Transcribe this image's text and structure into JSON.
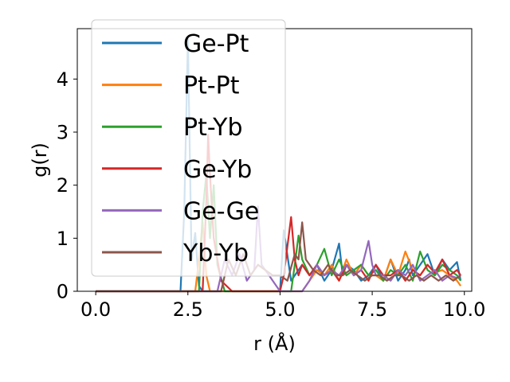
{
  "chart_data": {
    "type": "line",
    "xlabel": "r (Å)",
    "ylabel": "g(r)",
    "xlim": [
      -0.5,
      10.2
    ],
    "ylim": [
      0,
      4.95
    ],
    "x_ticks": [
      0.0,
      2.5,
      5.0,
      7.5,
      10.0
    ],
    "x_tick_labels": [
      "0.0",
      "2.5",
      "5.0",
      "7.5",
      "10.0"
    ],
    "y_ticks": [
      0,
      1,
      2,
      3,
      4
    ],
    "y_tick_labels": [
      "0",
      "1",
      "2",
      "3",
      "4"
    ],
    "grid": false,
    "legend_placement": "upper-left",
    "series": [
      {
        "name": "Ge-Pt",
        "color": "#1f77b4",
        "x": [
          0.0,
          2.3,
          2.4,
          2.5,
          2.6,
          2.7,
          2.8,
          2.9,
          3.1,
          3.6,
          4.6,
          5.0,
          5.1,
          5.3,
          5.6,
          5.8,
          6.0,
          6.2,
          6.4,
          6.6,
          6.7,
          6.8,
          7.0,
          7.2,
          7.4,
          7.6,
          7.8,
          8.0,
          8.2,
          8.4,
          8.5,
          8.6,
          8.8,
          9.0,
          9.2,
          9.4,
          9.6,
          9.8,
          9.9
        ],
        "y": [
          0.0,
          0.0,
          1.5,
          4.75,
          0.6,
          1.1,
          0.1,
          0.0,
          0.0,
          0.0,
          0.0,
          0.0,
          1.15,
          0.2,
          0.5,
          0.3,
          0.5,
          0.2,
          0.4,
          0.9,
          0.3,
          0.5,
          0.4,
          0.2,
          0.3,
          0.5,
          0.2,
          0.6,
          0.2,
          0.4,
          0.6,
          0.3,
          0.5,
          0.7,
          0.3,
          0.6,
          0.4,
          0.55,
          0.2
        ]
      },
      {
        "name": "Pt-Pt",
        "color": "#ff7f0e",
        "x": [
          0.0,
          2.7,
          2.8,
          2.9,
          3.0,
          3.1,
          3.3,
          3.6,
          4.0,
          4.4,
          5.0,
          5.2,
          5.4,
          5.6,
          5.8,
          6.0,
          6.2,
          6.4,
          6.6,
          6.8,
          7.0,
          7.2,
          7.4,
          7.6,
          7.8,
          8.0,
          8.2,
          8.4,
          8.6,
          8.8,
          9.0,
          9.2,
          9.4,
          9.6,
          9.8,
          9.9
        ],
        "y": [
          0.0,
          0.0,
          0.6,
          1.3,
          0.3,
          0.0,
          0.0,
          0.0,
          0.0,
          0.0,
          0.0,
          0.0,
          0.0,
          0.0,
          0.2,
          0.4,
          0.3,
          0.5,
          0.2,
          0.6,
          0.3,
          0.5,
          0.3,
          0.3,
          0.2,
          0.6,
          0.3,
          0.75,
          0.4,
          0.3,
          0.5,
          0.35,
          0.4,
          0.3,
          0.2,
          0.1
        ]
      },
      {
        "name": "Pt-Yb",
        "color": "#2ca02c",
        "x": [
          0.0,
          2.8,
          2.9,
          3.0,
          3.1,
          3.2,
          3.3,
          3.5,
          4.5,
          5.0,
          5.3,
          5.4,
          5.5,
          5.6,
          5.8,
          6.0,
          6.2,
          6.4,
          6.6,
          6.8,
          7.0,
          7.2,
          7.4,
          7.6,
          7.8,
          8.0,
          8.2,
          8.4,
          8.6,
          8.8,
          9.0,
          9.2,
          9.4,
          9.6,
          9.8,
          9.9
        ],
        "y": [
          0.0,
          0.0,
          1.5,
          2.2,
          1.0,
          2.0,
          0.5,
          0.0,
          0.0,
          0.0,
          0.0,
          0.5,
          1.05,
          0.6,
          0.3,
          0.5,
          0.8,
          0.3,
          0.6,
          0.3,
          0.4,
          0.5,
          0.3,
          0.4,
          0.2,
          0.4,
          0.3,
          0.5,
          0.2,
          0.75,
          0.4,
          0.3,
          0.5,
          0.4,
          0.3,
          0.2
        ]
      },
      {
        "name": "Ge-Yb",
        "color": "#d62728",
        "x": [
          0.0,
          2.9,
          3.0,
          3.05,
          3.1,
          3.2,
          3.4,
          3.7,
          4.5,
          5.0,
          5.1,
          5.3,
          5.4,
          5.5,
          5.6,
          5.8,
          6.0,
          6.2,
          6.4,
          6.6,
          6.8,
          7.0,
          7.2,
          7.4,
          7.6,
          7.8,
          8.0,
          8.2,
          8.4,
          8.6,
          8.8,
          9.0,
          9.2,
          9.4,
          9.6,
          9.8,
          9.9
        ],
        "y": [
          0.0,
          0.0,
          1.7,
          2.95,
          2.2,
          1.0,
          0.2,
          0.0,
          0.0,
          0.0,
          0.3,
          1.4,
          0.6,
          0.3,
          0.5,
          0.3,
          0.5,
          0.3,
          0.4,
          0.2,
          0.5,
          0.3,
          0.4,
          0.2,
          0.5,
          0.3,
          0.3,
          0.4,
          0.2,
          0.4,
          0.3,
          0.5,
          0.35,
          0.6,
          0.3,
          0.4,
          0.3
        ]
      },
      {
        "name": "Ge-Ge",
        "color": "#9467bd",
        "x": [
          0.0,
          3.3,
          3.5,
          3.7,
          3.9,
          4.1,
          4.3,
          4.4,
          4.5,
          4.7,
          5.0,
          5.2,
          5.4,
          5.6,
          5.8,
          6.0,
          6.2,
          6.4,
          6.6,
          6.8,
          7.0,
          7.2,
          7.4,
          7.5,
          7.6,
          7.8,
          8.0,
          8.2,
          8.4,
          8.6,
          8.8,
          9.0,
          9.2,
          9.4,
          9.6,
          9.8,
          9.9
        ],
        "y": [
          0.0,
          0.0,
          0.6,
          0.3,
          0.7,
          0.2,
          0.4,
          1.6,
          0.5,
          0.3,
          0.0,
          0.0,
          0.0,
          0.0,
          0.2,
          0.5,
          0.3,
          0.4,
          0.3,
          0.5,
          0.3,
          0.4,
          0.95,
          0.5,
          0.3,
          0.3,
          0.2,
          0.4,
          0.3,
          0.5,
          0.2,
          0.3,
          0.4,
          0.2,
          0.3,
          0.25,
          0.3
        ]
      },
      {
        "name": "Yb-Yb",
        "color": "#8c564b",
        "x": [
          0.0,
          3.4,
          3.6,
          3.8,
          4.0,
          4.2,
          4.4,
          4.6,
          4.8,
          5.0,
          5.2,
          5.4,
          5.5,
          5.6,
          5.7,
          5.9,
          6.1,
          6.3,
          6.5,
          6.7,
          6.9,
          7.1,
          7.3,
          7.5,
          7.7,
          7.9,
          8.1,
          8.3,
          8.5,
          8.7,
          8.9,
          9.1,
          9.3,
          9.5,
          9.7,
          9.9
        ],
        "y": [
          0.0,
          0.0,
          0.6,
          0.3,
          0.7,
          0.3,
          0.5,
          0.4,
          0.3,
          0.3,
          0.2,
          0.7,
          0.6,
          1.3,
          0.6,
          0.4,
          0.3,
          0.5,
          0.3,
          0.3,
          0.4,
          0.3,
          0.2,
          0.3,
          0.3,
          0.2,
          0.3,
          0.3,
          0.2,
          0.3,
          0.2,
          0.3,
          0.2,
          0.3,
          0.2,
          0.3
        ]
      }
    ]
  }
}
